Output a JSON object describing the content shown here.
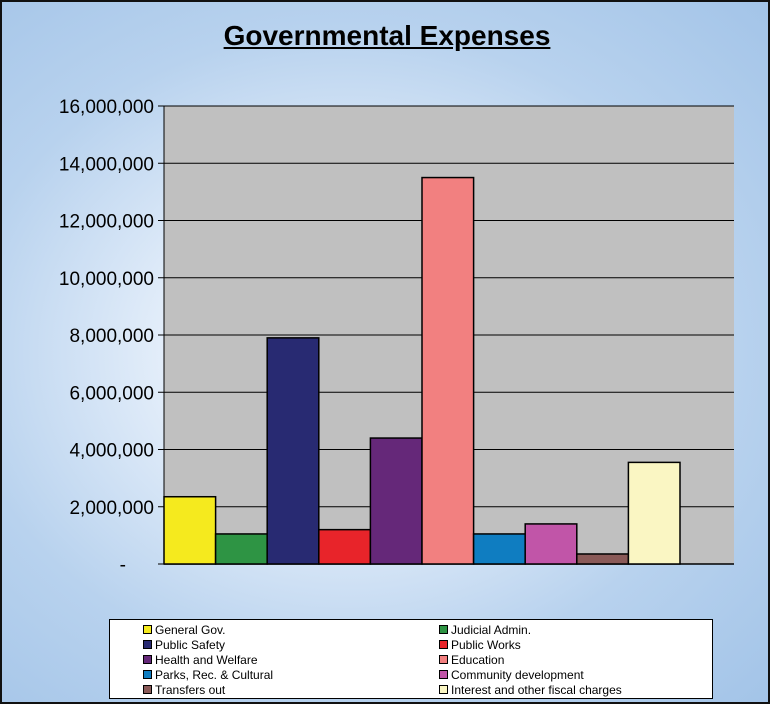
{
  "chart_data": {
    "type": "bar",
    "title": "Governmental Expenses",
    "xlabel": "",
    "ylabel": "",
    "ylim": [
      0,
      16000000
    ],
    "yticks": [
      0,
      2000000,
      4000000,
      6000000,
      8000000,
      10000000,
      12000000,
      14000000,
      16000000
    ],
    "ytick_labels": [
      "-",
      "2,000,000",
      "4,000,000",
      "6,000,000",
      "8,000,000",
      "10,000,000",
      "12,000,000",
      "14,000,000",
      "16,000,000"
    ],
    "grid": true,
    "legend_position": "bottom",
    "series": [
      {
        "name": "General Gov.",
        "value": 2350000,
        "color": "#f5ea1e"
      },
      {
        "name": "Judicial Admin.",
        "value": 1050000,
        "color": "#2e9444"
      },
      {
        "name": "Public Safety",
        "value": 7900000,
        "color": "#282a72"
      },
      {
        "name": "Public Works",
        "value": 1200000,
        "color": "#e8242a"
      },
      {
        "name": "Health and Welfare",
        "value": 4400000,
        "color": "#652879"
      },
      {
        "name": "Education",
        "value": 13500000,
        "color": "#f28080"
      },
      {
        "name": "Parks, Rec. & Cultural",
        "value": 1050000,
        "color": "#0f7dc1"
      },
      {
        "name": "Community development",
        "value": 1400000,
        "color": "#c155a8"
      },
      {
        "name": "Transfers out",
        "value": 350000,
        "color": "#8a5a58"
      },
      {
        "name": "Interest and other fiscal charges",
        "value": 3550000,
        "color": "#faf6c3"
      }
    ]
  }
}
